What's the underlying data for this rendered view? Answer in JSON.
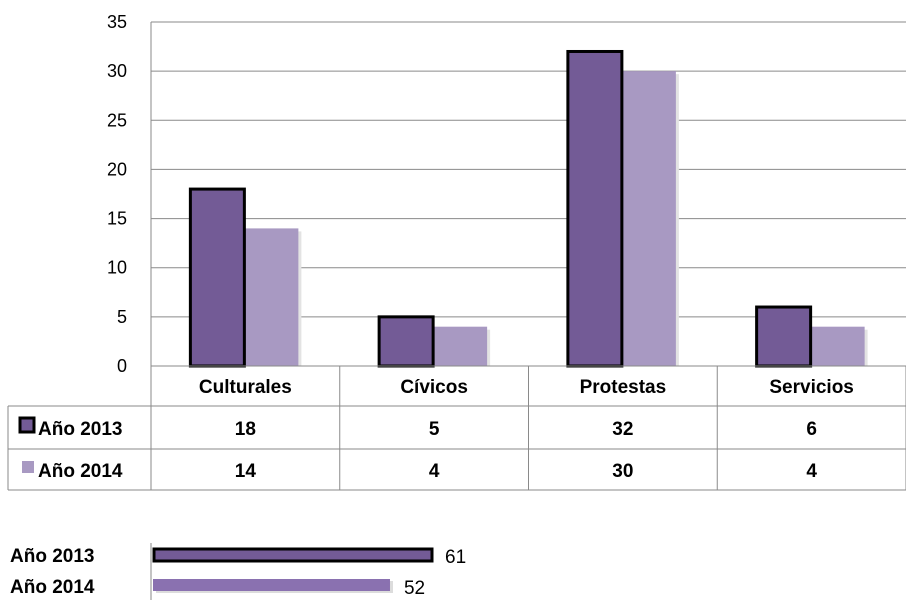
{
  "chart_data": [
    {
      "type": "bar",
      "categories": [
        "Culturales",
        "Cívicos",
        "Protestas",
        "Servicios"
      ],
      "series": [
        {
          "name": "Año 2013",
          "values": [
            18,
            5,
            32,
            6
          ]
        },
        {
          "name": "Año 2014",
          "values": [
            14,
            4,
            30,
            4
          ]
        }
      ],
      "ylim": [
        0,
        35
      ],
      "yticks": [
        "0",
        "5",
        "10",
        "15",
        "20",
        "25",
        "30",
        "35"
      ],
      "grid": true,
      "data_table": true,
      "colors": {
        "2013": "#735b96",
        "2014": "#a899c2",
        "outline_2013": "#000000"
      }
    },
    {
      "type": "bar",
      "orientation": "horizontal",
      "categories": [
        "Año 2013",
        "Año 2014"
      ],
      "values": [
        61,
        52
      ],
      "data_labels": [
        "61",
        "52"
      ],
      "colors": {
        "2013": "#735b96",
        "2014": "#8a71b0"
      }
    }
  ]
}
